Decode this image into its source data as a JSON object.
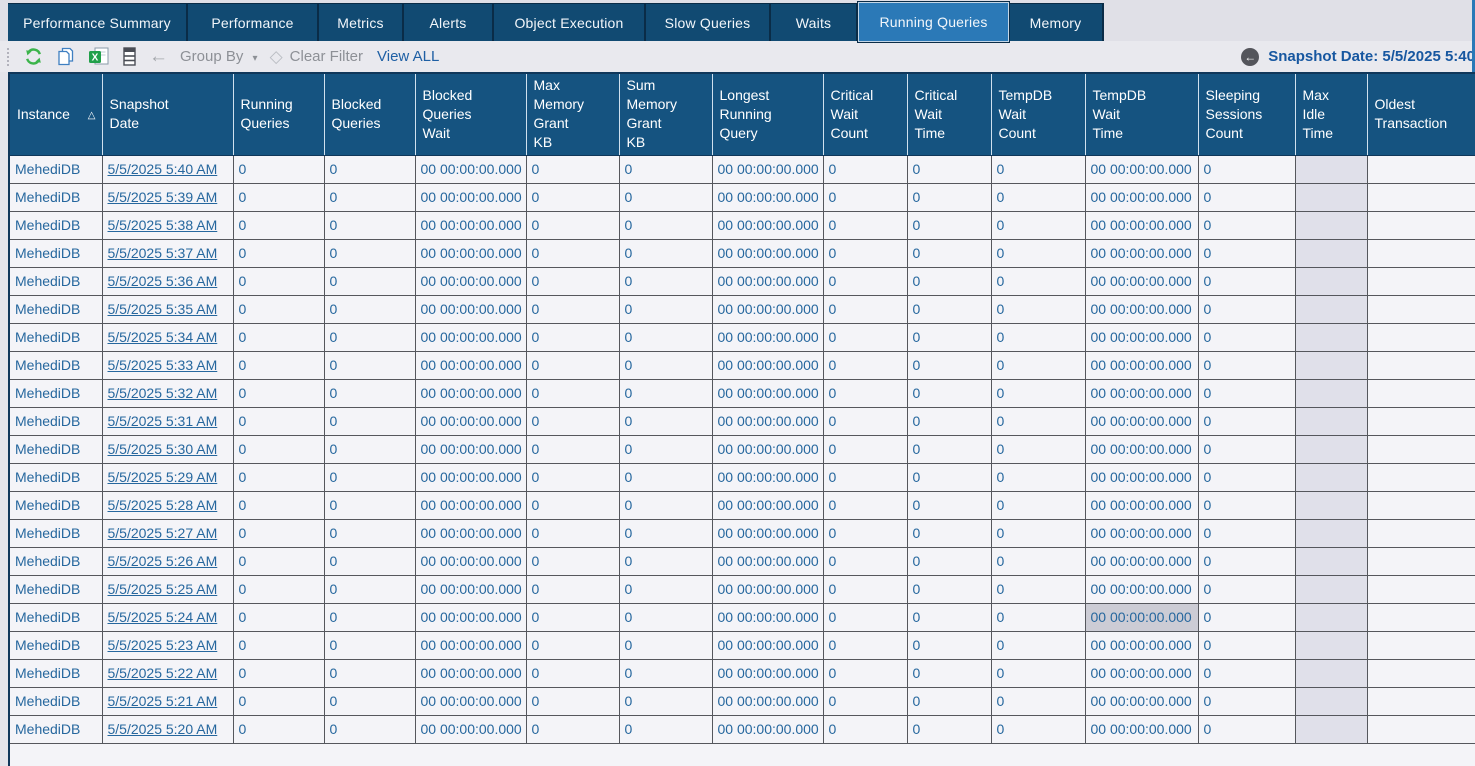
{
  "tabs": [
    {
      "label": "Performance Summary",
      "active": false
    },
    {
      "label": "Performance",
      "active": false
    },
    {
      "label": "Metrics",
      "active": false
    },
    {
      "label": "Alerts",
      "active": false
    },
    {
      "label": "Object Execution",
      "active": false
    },
    {
      "label": "Slow Queries",
      "active": false
    },
    {
      "label": "Waits",
      "active": false
    },
    {
      "label": "Running Queries",
      "active": true
    },
    {
      "label": "Memory",
      "active": false
    }
  ],
  "toolbar": {
    "icons": [
      "refresh",
      "copy",
      "export-excel",
      "column-chooser",
      "back-arrow",
      "eraser",
      "back-circle"
    ],
    "group_by_label": "Group By",
    "group_by_caret": "▾",
    "clear_filter_label": "Clear Filter",
    "view_all_label": "View ALL",
    "snapshot_date_label": "Snapshot Date: 5/5/2025 5:40"
  },
  "table": {
    "sort_column": "Instance",
    "sort_direction": "ascending",
    "sort_glyph": "△",
    "columns": [
      "Instance",
      "Snapshot\nDate",
      "Running\nQueries",
      "Blocked\nQueries",
      "Blocked\nQueries\nWait",
      "Max\nMemory\nGrant\nKB",
      "Sum\nMemory\nGrant\nKB",
      "Longest\nRunning\nQuery",
      "Critical\nWait\nCount",
      "Critical\nWait\nTime",
      "TempDB\nWait\nCount",
      "TempDB\nWait\nTime",
      "Sleeping\nSessions\nCount",
      "Max\nIdle\nTime",
      "Oldest\nTransaction"
    ],
    "selected_cell": {
      "row_index": 16,
      "column_index": 11
    },
    "rows": [
      [
        "MehediDB",
        "5/5/2025 5:40 AM",
        "0",
        "0",
        "00 00:00:00.000",
        "0",
        "0",
        "00 00:00:00.000",
        "0",
        "0",
        "0",
        "00 00:00:00.000",
        "0",
        "",
        ""
      ],
      [
        "MehediDB",
        "5/5/2025 5:39 AM",
        "0",
        "0",
        "00 00:00:00.000",
        "0",
        "0",
        "00 00:00:00.000",
        "0",
        "0",
        "0",
        "00 00:00:00.000",
        "0",
        "",
        ""
      ],
      [
        "MehediDB",
        "5/5/2025 5:38 AM",
        "0",
        "0",
        "00 00:00:00.000",
        "0",
        "0",
        "00 00:00:00.000",
        "0",
        "0",
        "0",
        "00 00:00:00.000",
        "0",
        "",
        ""
      ],
      [
        "MehediDB",
        "5/5/2025 5:37 AM",
        "0",
        "0",
        "00 00:00:00.000",
        "0",
        "0",
        "00 00:00:00.000",
        "0",
        "0",
        "0",
        "00 00:00:00.000",
        "0",
        "",
        ""
      ],
      [
        "MehediDB",
        "5/5/2025 5:36 AM",
        "0",
        "0",
        "00 00:00:00.000",
        "0",
        "0",
        "00 00:00:00.000",
        "0",
        "0",
        "0",
        "00 00:00:00.000",
        "0",
        "",
        ""
      ],
      [
        "MehediDB",
        "5/5/2025 5:35 AM",
        "0",
        "0",
        "00 00:00:00.000",
        "0",
        "0",
        "00 00:00:00.000",
        "0",
        "0",
        "0",
        "00 00:00:00.000",
        "0",
        "",
        ""
      ],
      [
        "MehediDB",
        "5/5/2025 5:34 AM",
        "0",
        "0",
        "00 00:00:00.000",
        "0",
        "0",
        "00 00:00:00.000",
        "0",
        "0",
        "0",
        "00 00:00:00.000",
        "0",
        "",
        ""
      ],
      [
        "MehediDB",
        "5/5/2025 5:33 AM",
        "0",
        "0",
        "00 00:00:00.000",
        "0",
        "0",
        "00 00:00:00.000",
        "0",
        "0",
        "0",
        "00 00:00:00.000",
        "0",
        "",
        ""
      ],
      [
        "MehediDB",
        "5/5/2025 5:32 AM",
        "0",
        "0",
        "00 00:00:00.000",
        "0",
        "0",
        "00 00:00:00.000",
        "0",
        "0",
        "0",
        "00 00:00:00.000",
        "0",
        "",
        ""
      ],
      [
        "MehediDB",
        "5/5/2025 5:31 AM",
        "0",
        "0",
        "00 00:00:00.000",
        "0",
        "0",
        "00 00:00:00.000",
        "0",
        "0",
        "0",
        "00 00:00:00.000",
        "0",
        "",
        ""
      ],
      [
        "MehediDB",
        "5/5/2025 5:30 AM",
        "0",
        "0",
        "00 00:00:00.000",
        "0",
        "0",
        "00 00:00:00.000",
        "0",
        "0",
        "0",
        "00 00:00:00.000",
        "0",
        "",
        ""
      ],
      [
        "MehediDB",
        "5/5/2025 5:29 AM",
        "0",
        "0",
        "00 00:00:00.000",
        "0",
        "0",
        "00 00:00:00.000",
        "0",
        "0",
        "0",
        "00 00:00:00.000",
        "0",
        "",
        ""
      ],
      [
        "MehediDB",
        "5/5/2025 5:28 AM",
        "0",
        "0",
        "00 00:00:00.000",
        "0",
        "0",
        "00 00:00:00.000",
        "0",
        "0",
        "0",
        "00 00:00:00.000",
        "0",
        "",
        ""
      ],
      [
        "MehediDB",
        "5/5/2025 5:27 AM",
        "0",
        "0",
        "00 00:00:00.000",
        "0",
        "0",
        "00 00:00:00.000",
        "0",
        "0",
        "0",
        "00 00:00:00.000",
        "0",
        "",
        ""
      ],
      [
        "MehediDB",
        "5/5/2025 5:26 AM",
        "0",
        "0",
        "00 00:00:00.000",
        "0",
        "0",
        "00 00:00:00.000",
        "0",
        "0",
        "0",
        "00 00:00:00.000",
        "0",
        "",
        ""
      ],
      [
        "MehediDB",
        "5/5/2025 5:25 AM",
        "0",
        "0",
        "00 00:00:00.000",
        "0",
        "0",
        "00 00:00:00.000",
        "0",
        "0",
        "0",
        "00 00:00:00.000",
        "0",
        "",
        ""
      ],
      [
        "MehediDB",
        "5/5/2025 5:24 AM",
        "0",
        "0",
        "00 00:00:00.000",
        "0",
        "0",
        "00 00:00:00.000",
        "0",
        "0",
        "0",
        "00 00:00:00.000",
        "0",
        "",
        ""
      ],
      [
        "MehediDB",
        "5/5/2025 5:23 AM",
        "0",
        "0",
        "00 00:00:00.000",
        "0",
        "0",
        "00 00:00:00.000",
        "0",
        "0",
        "0",
        "00 00:00:00.000",
        "0",
        "",
        ""
      ],
      [
        "MehediDB",
        "5/5/2025 5:22 AM",
        "0",
        "0",
        "00 00:00:00.000",
        "0",
        "0",
        "00 00:00:00.000",
        "0",
        "0",
        "0",
        "00 00:00:00.000",
        "0",
        "",
        ""
      ],
      [
        "MehediDB",
        "5/5/2025 5:21 AM",
        "0",
        "0",
        "00 00:00:00.000",
        "0",
        "0",
        "00 00:00:00.000",
        "0",
        "0",
        "0",
        "00 00:00:00.000",
        "0",
        "",
        ""
      ],
      [
        "MehediDB",
        "5/5/2025 5:20 AM",
        "0",
        "0",
        "00 00:00:00.000",
        "0",
        "0",
        "00 00:00:00.000",
        "0",
        "0",
        "0",
        "00 00:00:00.000",
        "0",
        "",
        ""
      ]
    ]
  },
  "colors": {
    "tab_inactive_bg": "#114a72",
    "tab_active_bg": "#2b79b7",
    "header_bg": "#155380",
    "cell_text": "#26679e",
    "selected_cell_bg": "#ccccd5",
    "max_idle_column_bg": "#e0e0ea",
    "grid_line": "#55575d",
    "toolbar_bg": "#e9e9ee"
  }
}
